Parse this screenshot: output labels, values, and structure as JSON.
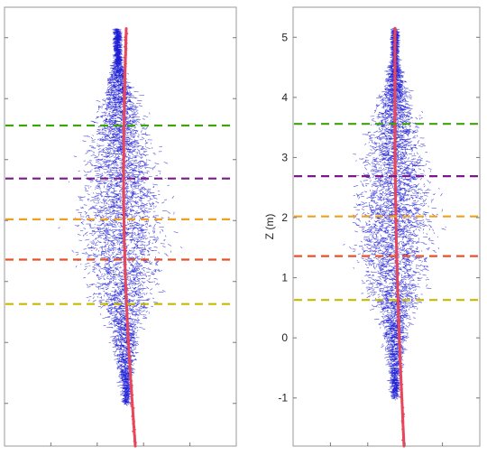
{
  "chart_data": [
    {
      "type": "scatter",
      "panel": "left",
      "title": "",
      "xlabel": "",
      "ylabel": "",
      "ylim": [
        -1.7,
        5.5
      ],
      "yticks": [
        -1,
        0,
        1,
        2,
        3,
        4,
        5
      ],
      "ytick_labels_visible": false,
      "xtick_labels_visible": false,
      "grid": false,
      "series": [
        {
          "kind": "leaf points",
          "color": "#1f1fd6"
        },
        {
          "kind": "stem points",
          "color": "#e8465a"
        }
      ],
      "horizontal_lines": [
        {
          "y": 3.56,
          "color": "#3fa30c",
          "style": "dashed"
        },
        {
          "y": 2.69,
          "color": "#7a1a8a",
          "style": "dashed"
        },
        {
          "y": 2.02,
          "color": "#f0a020",
          "style": "dashed"
        },
        {
          "y": 1.36,
          "color": "#e8502a",
          "style": "dashed"
        },
        {
          "y": 0.63,
          "color": "#c9b800",
          "style": "dashed"
        }
      ]
    },
    {
      "type": "scatter",
      "panel": "right",
      "title": "",
      "xlabel": "",
      "ylabel": "Z (m)",
      "ylim": [
        -1.8,
        5.5
      ],
      "yticks": [
        -1,
        0,
        1,
        2,
        3,
        4,
        5
      ],
      "ytick_labels": [
        "-1",
        "0",
        "1",
        "2",
        "3",
        "4",
        "5"
      ],
      "xtick_labels_visible": false,
      "grid": false,
      "series": [
        {
          "kind": "leaf points",
          "color": "#1f1fd6"
        },
        {
          "kind": "stem points",
          "color": "#e8465a"
        }
      ],
      "horizontal_lines": [
        {
          "y": 3.56,
          "color": "#3fa30c",
          "style": "dashed"
        },
        {
          "y": 2.69,
          "color": "#7a1a8a",
          "style": "dashed"
        },
        {
          "y": 2.02,
          "color": "#f0a020",
          "style": "dashed"
        },
        {
          "y": 1.36,
          "color": "#e8502a",
          "style": "dashed"
        },
        {
          "y": 0.63,
          "color": "#c9b800",
          "style": "dashed"
        }
      ]
    }
  ]
}
